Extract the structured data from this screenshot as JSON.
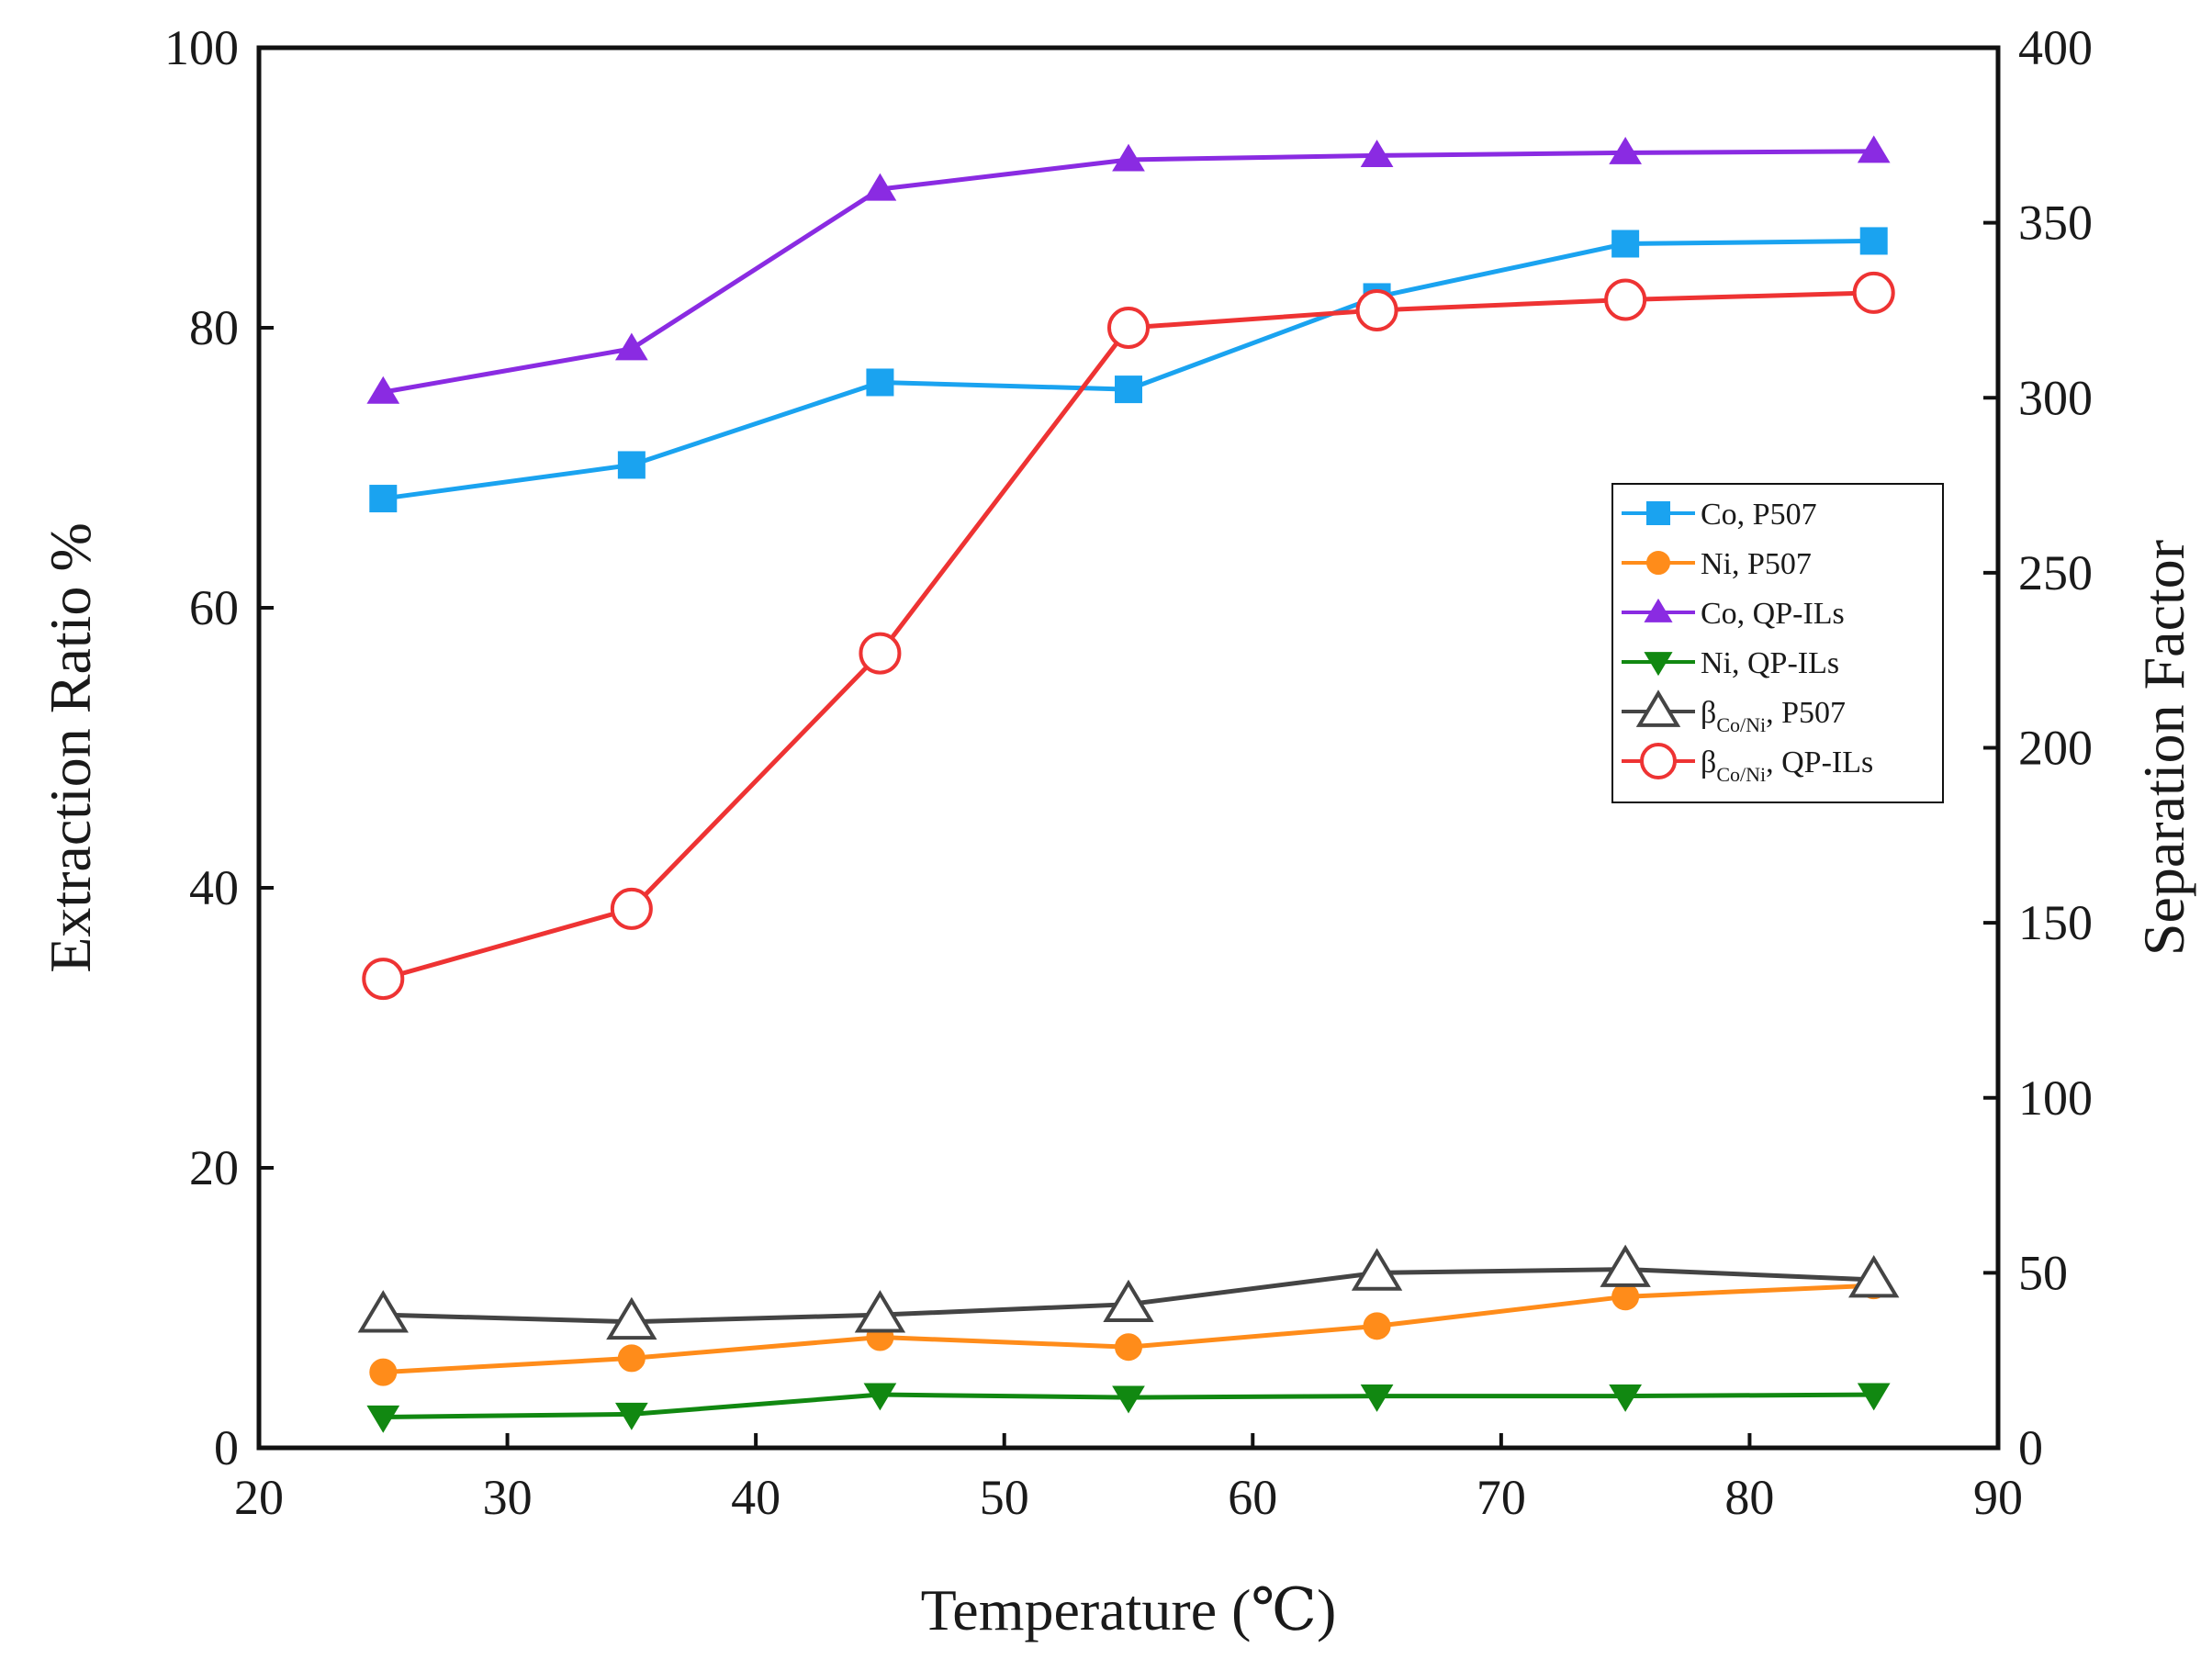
{
  "chart_data": {
    "type": "line",
    "title": "",
    "xlabel": "Temperature (℃)",
    "ylabel": "Extraction Ratio %",
    "y2label": "Separation Factor",
    "xlim": [
      20,
      90
    ],
    "ylim": [
      0,
      100
    ],
    "y2lim": [
      0,
      400
    ],
    "xticks": [
      20,
      30,
      40,
      50,
      60,
      70,
      80,
      90
    ],
    "yticks": [
      0,
      20,
      40,
      60,
      80,
      100
    ],
    "y2ticks": [
      0,
      50,
      100,
      150,
      200,
      250,
      300,
      350,
      400
    ],
    "grid": false,
    "legend_position": "right",
    "x": [
      25,
      35,
      45,
      55,
      65,
      75,
      85
    ],
    "series": [
      {
        "name": "Co, P507",
        "label_main": "Co, P507",
        "label_sub": "",
        "label_tail": "",
        "axis": "left",
        "color": "#1aa3f0",
        "marker": "square",
        "filled": true,
        "values": [
          67.8,
          70.2,
          76.1,
          75.6,
          82.2,
          86.0,
          86.2
        ]
      },
      {
        "name": "Ni, P507",
        "label_main": "Ni, P507",
        "label_sub": "",
        "label_tail": "",
        "axis": "left",
        "color": "#ff8c1a",
        "marker": "circle",
        "filled": true,
        "values": [
          5.4,
          6.4,
          7.9,
          7.2,
          8.7,
          10.8,
          11.6
        ]
      },
      {
        "name": "Co, QP-ILs",
        "label_main": "Co, QP-ILs",
        "label_sub": "",
        "label_tail": "",
        "axis": "left",
        "color": "#8a2be2",
        "marker": "triangle-up",
        "filled": true,
        "values": [
          75.4,
          78.5,
          89.9,
          92.0,
          92.3,
          92.5,
          92.6
        ]
      },
      {
        "name": "Ni,  QP-ILs",
        "label_main": "Ni,  QP-ILs",
        "label_sub": "",
        "label_tail": "",
        "axis": "left",
        "color": "#118811",
        "marker": "triangle-down",
        "filled": true,
        "values": [
          2.2,
          2.4,
          3.8,
          3.6,
          3.7,
          3.7,
          3.8
        ]
      },
      {
        "name": "βCo/Ni, P507",
        "label_main": "β",
        "label_sub": "Co/Ni",
        "label_tail": ", P507",
        "axis": "right",
        "color": "#444444",
        "marker": "triangle-up",
        "filled": false,
        "values": [
          38,
          36,
          38,
          41,
          50,
          51,
          48
        ]
      },
      {
        "name": "βCo/Ni, QP-ILs",
        "label_main": "β",
        "label_sub": "Co/Ni",
        "label_tail": ", QP-ILs",
        "axis": "right",
        "color": "#ee3333",
        "marker": "circle",
        "filled": false,
        "values": [
          134,
          154,
          227,
          320,
          325,
          328,
          330
        ]
      }
    ]
  }
}
